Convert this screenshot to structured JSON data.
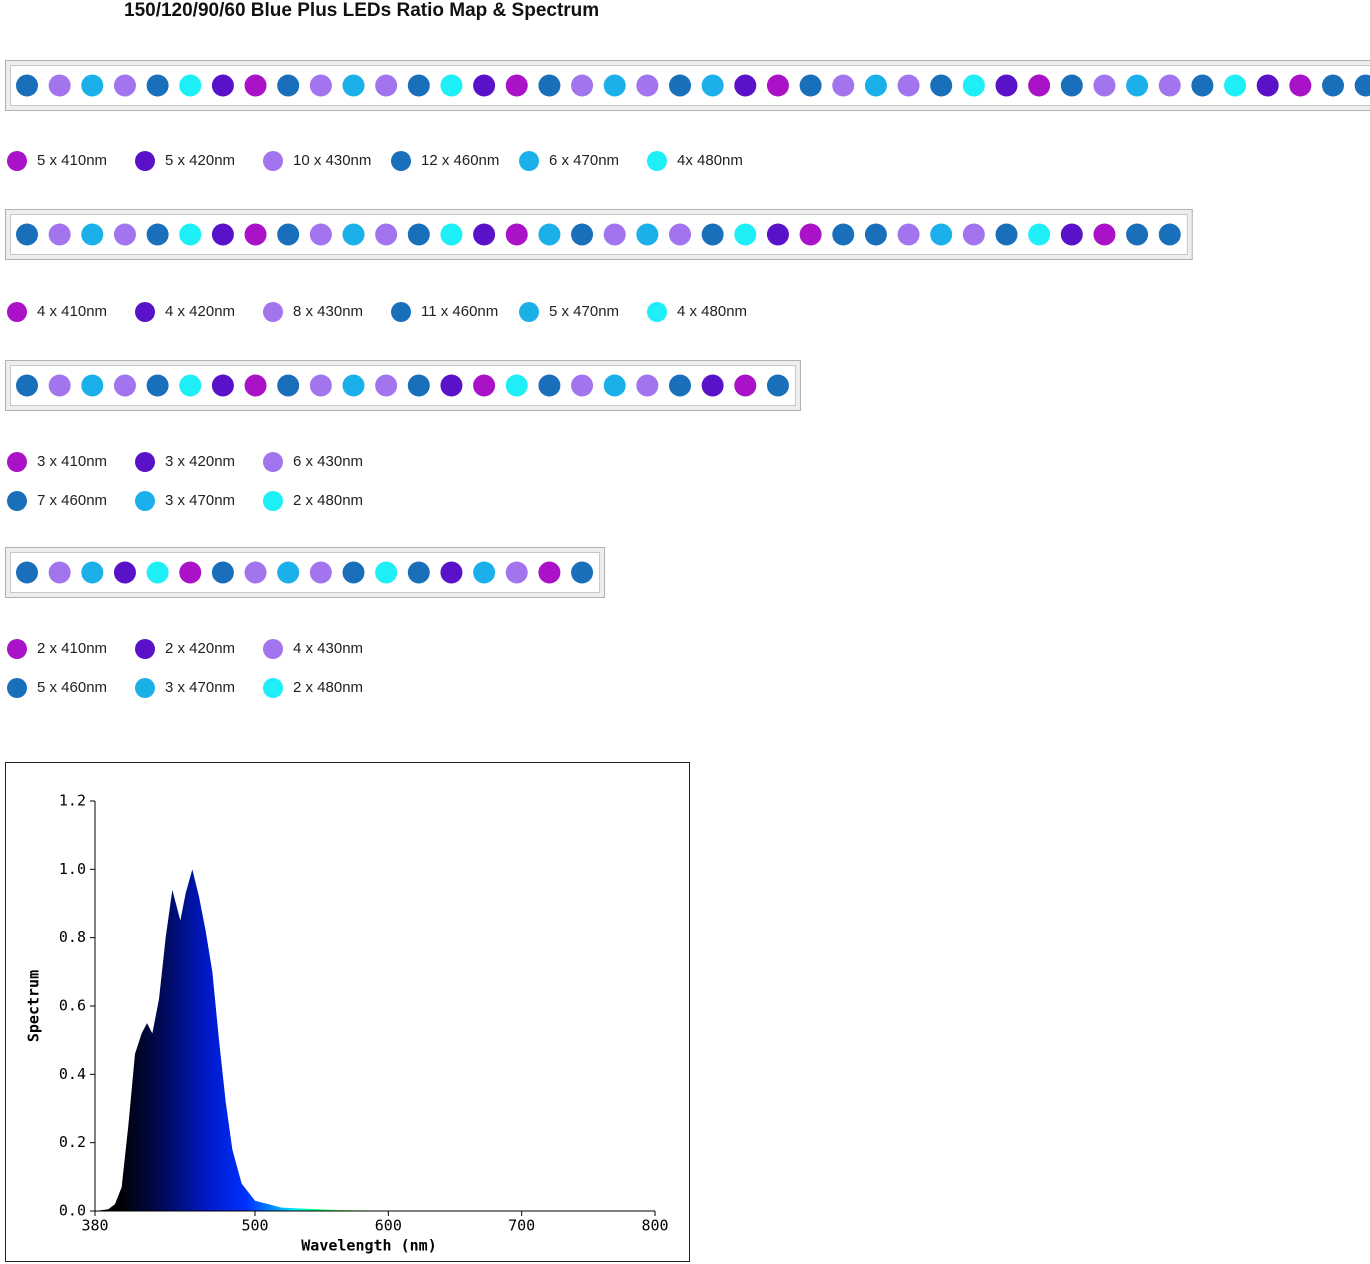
{
  "title": "150/120/90/60 Blue Plus LEDs Ratio Map & Spectrum",
  "bars": [
    {
      "leds": [
        "#1a6fbb",
        "#a274ee",
        "#1cb0ea",
        "#a274ee",
        "#1a6fbb",
        "#1eeef6",
        "#5a12c8",
        "#a912c6",
        "#1a6fbb",
        "#a274ee",
        "#1cb0ea",
        "#a274ee",
        "#1a6fbb",
        "#1eeef6",
        "#5a12c8",
        "#a912c6",
        "#1a6fbb",
        "#a274ee",
        "#1cb0ea",
        "#a274ee",
        "#1a6fbb",
        "#1cb0ea",
        "#5a12c8",
        "#a912c6",
        "#1a6fbb",
        "#a274ee",
        "#1cb0ea",
        "#a274ee",
        "#1a6fbb",
        "#1eeef6",
        "#5a12c8",
        "#a912c6",
        "#1a6fbb",
        "#a274ee",
        "#1cb0ea",
        "#a274ee",
        "#1a6fbb",
        "#1eeef6",
        "#5a12c8",
        "#a912c6",
        "#1a6fbb",
        "#1a6fbb"
      ],
      "legend": [
        {
          "label": "5 x 410nm",
          "color": "#a912c6"
        },
        {
          "label": "5 x 420nm",
          "color": "#5a12c8"
        },
        {
          "label": "10 x 430nm",
          "color": "#a274ee"
        },
        {
          "label": "12 x 460nm",
          "color": "#1a6fbb"
        },
        {
          "label": "6 x 470nm",
          "color": "#1cb0ea"
        },
        {
          "label": "4x 480nm",
          "color": "#1eeef6"
        }
      ]
    },
    {
      "leds": [
        "#1a6fbb",
        "#a274ee",
        "#1cb0ea",
        "#a274ee",
        "#1a6fbb",
        "#1eeef6",
        "#5a12c8",
        "#a912c6",
        "#1a6fbb",
        "#a274ee",
        "#1cb0ea",
        "#a274ee",
        "#1a6fbb",
        "#1eeef6",
        "#5a12c8",
        "#a912c6",
        "#1cb0ea",
        "#1a6fbb",
        "#a274ee",
        "#1cb0ea",
        "#a274ee",
        "#1a6fbb",
        "#1eeef6",
        "#5a12c8",
        "#a912c6",
        "#1a6fbb",
        "#1a6fbb",
        "#a274ee",
        "#1cb0ea",
        "#a274ee",
        "#1a6fbb",
        "#1eeef6",
        "#5a12c8",
        "#a912c6",
        "#1a6fbb",
        "#1a6fbb"
      ],
      "legend": [
        {
          "label": "4 x 410nm",
          "color": "#a912c6"
        },
        {
          "label": "4 x 420nm",
          "color": "#5a12c8"
        },
        {
          "label": "8 x 430nm",
          "color": "#a274ee"
        },
        {
          "label": "11 x 460nm",
          "color": "#1a6fbb"
        },
        {
          "label": "5 x 470nm",
          "color": "#1cb0ea"
        },
        {
          "label": "4 x 480nm",
          "color": "#1eeef6"
        }
      ]
    },
    {
      "leds": [
        "#1a6fbb",
        "#a274ee",
        "#1cb0ea",
        "#a274ee",
        "#1a6fbb",
        "#1eeef6",
        "#5a12c8",
        "#a912c6",
        "#1a6fbb",
        "#a274ee",
        "#1cb0ea",
        "#a274ee",
        "#1a6fbb",
        "#5a12c8",
        "#a912c6",
        "#1eeef6",
        "#1a6fbb",
        "#a274ee",
        "#1cb0ea",
        "#a274ee",
        "#1a6fbb",
        "#5a12c8",
        "#a912c6",
        "#1a6fbb"
      ],
      "legend": [
        {
          "label": "3 x 410nm",
          "color": "#a912c6"
        },
        {
          "label": "3 x 420nm",
          "color": "#5a12c8"
        },
        {
          "label": "6 x 430nm",
          "color": "#a274ee"
        },
        {
          "label": "7 x 460nm",
          "color": "#1a6fbb"
        },
        {
          "label": "3 x 470nm",
          "color": "#1cb0ea"
        },
        {
          "label": "2 x 480nm",
          "color": "#1eeef6"
        }
      ]
    },
    {
      "leds": [
        "#1a6fbb",
        "#a274ee",
        "#1cb0ea",
        "#5a12c8",
        "#1eeef6",
        "#a912c6",
        "#1a6fbb",
        "#a274ee",
        "#1cb0ea",
        "#a274ee",
        "#1a6fbb",
        "#1eeef6",
        "#1a6fbb",
        "#5a12c8",
        "#1cb0ea",
        "#a274ee",
        "#a912c6",
        "#1a6fbb"
      ],
      "legend": [
        {
          "label": "2 x 410nm",
          "color": "#a912c6"
        },
        {
          "label": "2 x 420nm",
          "color": "#5a12c8"
        },
        {
          "label": "4 x 430nm",
          "color": "#a274ee"
        },
        {
          "label": "5 x 460nm",
          "color": "#1a6fbb"
        },
        {
          "label": "3 x 470nm",
          "color": "#1cb0ea"
        },
        {
          "label": "2 x 480nm",
          "color": "#1eeef6"
        }
      ]
    }
  ],
  "chart_data": {
    "type": "area",
    "xlabel": "Wavelength (nm)",
    "ylabel": "Spectrum",
    "x": [
      380,
      390,
      395,
      400,
      405,
      410,
      415,
      419,
      423,
      428,
      433,
      438,
      444,
      448,
      453,
      458,
      463,
      468,
      473,
      478,
      483,
      490,
      500,
      520,
      560,
      600,
      800
    ],
    "values": [
      0,
      0.005,
      0.02,
      0.07,
      0.25,
      0.46,
      0.52,
      0.55,
      0.52,
      0.62,
      0.8,
      0.94,
      0.85,
      0.93,
      1.0,
      0.92,
      0.82,
      0.7,
      0.5,
      0.32,
      0.18,
      0.08,
      0.03,
      0.01,
      0.003,
      0.001,
      0
    ],
    "xlim": [
      380,
      800
    ],
    "ylim": [
      0,
      1.2
    ],
    "xticks": [
      380,
      500,
      600,
      700,
      800
    ],
    "yticks": [
      {
        "value": 0,
        "label": "0.0"
      },
      0.2,
      0.4,
      0.6,
      0.8,
      {
        "value": 1,
        "label": "1.0"
      },
      1.2
    ]
  }
}
